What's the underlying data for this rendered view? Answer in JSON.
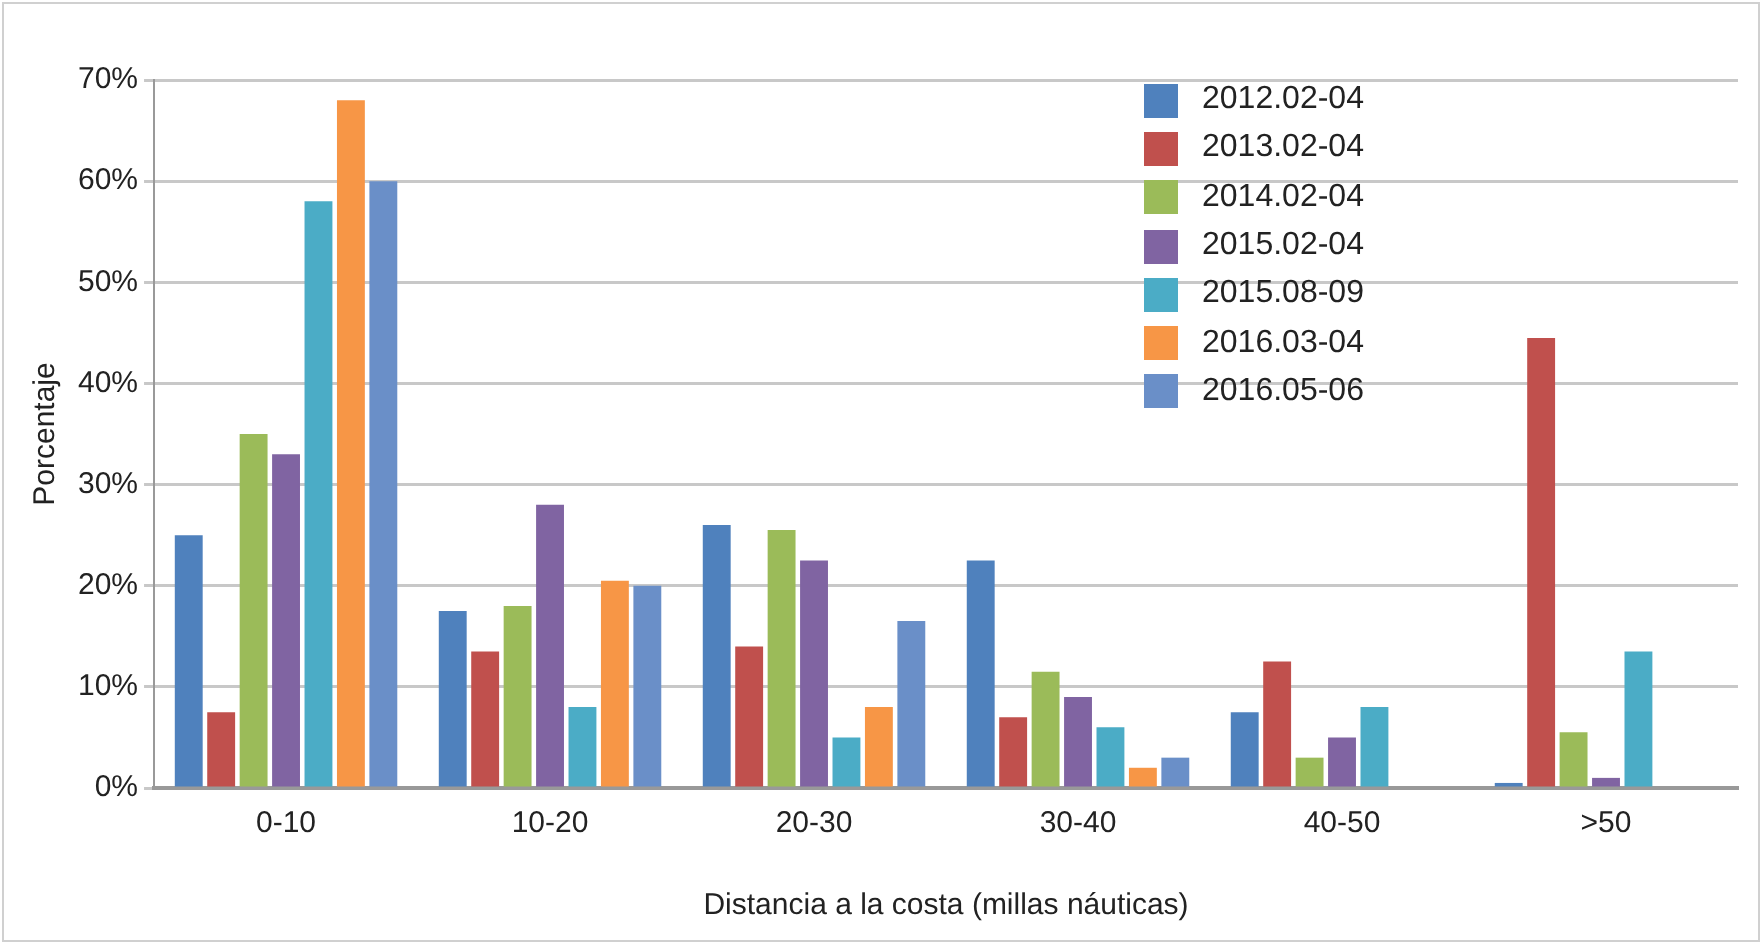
{
  "chart_data": {
    "type": "bar",
    "xlabel": "Distancia a la costa (millas náuticas)",
    "ylabel": "Porcentaje",
    "categories": [
      "0-10",
      "10-20",
      "20-30",
      "30-40",
      "40-50",
      ">50"
    ],
    "ylim": [
      0,
      70
    ],
    "yticks": [
      {
        "value": 0,
        "label": "0%"
      },
      {
        "value": 10,
        "label": "10%"
      },
      {
        "value": 20,
        "label": "20%"
      },
      {
        "value": 30,
        "label": "30%"
      },
      {
        "value": 40,
        "label": "40%"
      },
      {
        "value": 50,
        "label": "50%"
      },
      {
        "value": 60,
        "label": "60%"
      },
      {
        "value": 70,
        "label": "70%"
      }
    ],
    "grid": "y",
    "legend": "top right",
    "series": [
      {
        "name": "2012.02-04",
        "color": "#4f81bd",
        "values": [
          25,
          17.5,
          26,
          22.5,
          7.5,
          0.5
        ]
      },
      {
        "name": "2013.02-04",
        "color": "#c0504d",
        "values": [
          7.5,
          13.5,
          14,
          7,
          12.5,
          44.5
        ]
      },
      {
        "name": "2014.02-04",
        "color": "#9bbb59",
        "values": [
          35,
          18,
          25.5,
          11.5,
          3,
          5.5
        ]
      },
      {
        "name": "2015.02-04",
        "color": "#8064a2",
        "values": [
          33,
          28,
          22.5,
          9,
          5,
          1
        ]
      },
      {
        "name": "2015.08-09",
        "color": "#4bacc6",
        "values": [
          58,
          8,
          5,
          6,
          8,
          13.5
        ]
      },
      {
        "name": "2016.03-04",
        "color": "#f79646",
        "values": [
          68,
          20.5,
          8,
          2,
          null,
          null
        ]
      },
      {
        "name": "2016.05-06",
        "color": "#6a8fc8",
        "values": [
          60,
          20,
          16.5,
          3,
          null,
          null
        ]
      }
    ]
  }
}
